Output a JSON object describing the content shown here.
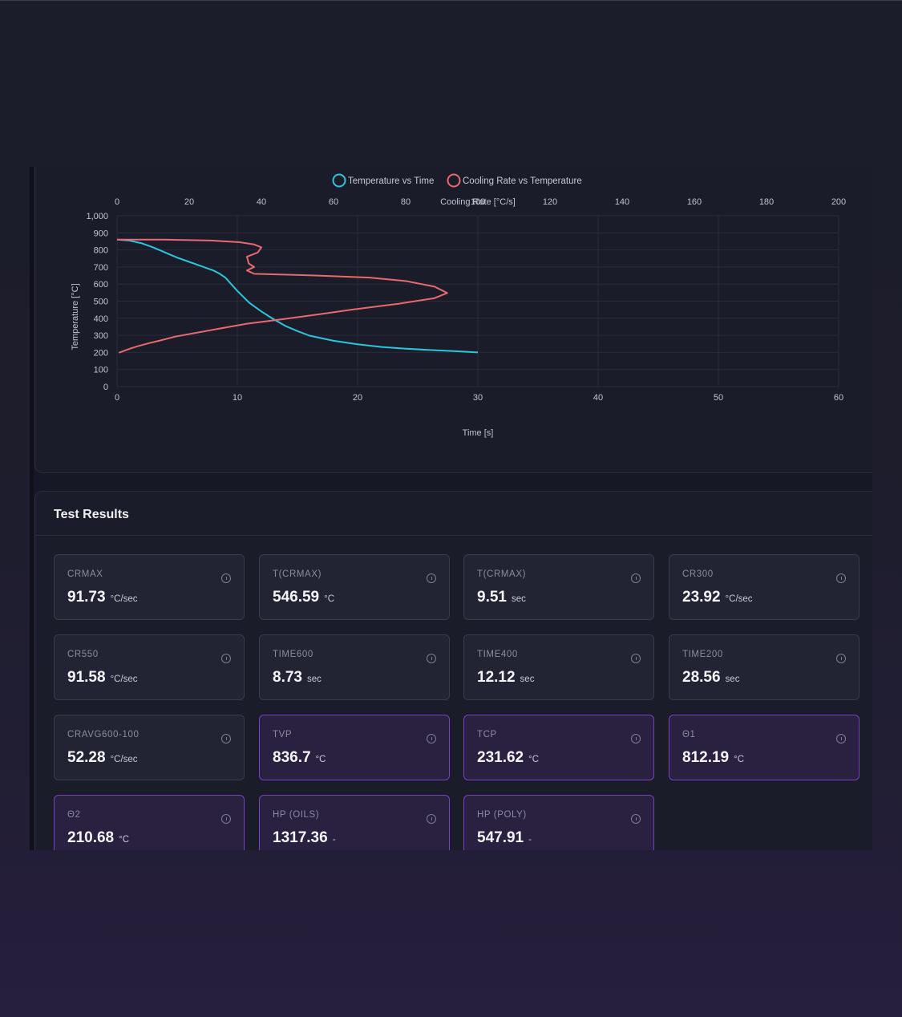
{
  "colors": {
    "temperature_series": "#2bc6dc",
    "cooling_series": "#e8696f",
    "highlight_border": "#7b3fc4",
    "background": "#1c1d2a"
  },
  "chart_data": {
    "type": "line",
    "legend_placement": "top-center",
    "grid": true,
    "legend": [
      "Temperature vs Time",
      "Cooling Rate vs Temperature"
    ],
    "x_label": "Time [s]",
    "x2_label": "Cooling Rate [°C/s]",
    "y_label": "Temperature [°C]",
    "xlim": [
      0,
      60
    ],
    "x2lim": [
      0,
      200
    ],
    "ylim": [
      0,
      1000
    ],
    "x_ticks": [
      "0",
      "10",
      "20",
      "30",
      "40",
      "50",
      "60"
    ],
    "x2_ticks": [
      "0",
      "20",
      "40",
      "60",
      "80",
      "100",
      "120",
      "140",
      "160",
      "180",
      "200"
    ],
    "y_ticks": [
      "0",
      "100",
      "200",
      "300",
      "400",
      "500",
      "600",
      "700",
      "800",
      "900",
      "1,000"
    ],
    "series": [
      {
        "name": "Temperature vs Time",
        "axis": "x",
        "points": [
          [
            0,
            860
          ],
          [
            1,
            855
          ],
          [
            2,
            840
          ],
          [
            3,
            815
          ],
          [
            4,
            785
          ],
          [
            5,
            755
          ],
          [
            6,
            730
          ],
          [
            7,
            705
          ],
          [
            8,
            680
          ],
          [
            8.5,
            662
          ],
          [
            9,
            638
          ],
          [
            10,
            560
          ],
          [
            11,
            490
          ],
          [
            12,
            440
          ],
          [
            13,
            395
          ],
          [
            14,
            355
          ],
          [
            15,
            325
          ],
          [
            16,
            298
          ],
          [
            18,
            268
          ],
          [
            20,
            248
          ],
          [
            22,
            232
          ],
          [
            24,
            222
          ],
          [
            26,
            214
          ],
          [
            28,
            208
          ],
          [
            30,
            200
          ]
        ]
      },
      {
        "name": "Cooling Rate vs Temperature",
        "axis": "x2",
        "points": [
          [
            0,
            860
          ],
          [
            13,
            860
          ],
          [
            26,
            855
          ],
          [
            34,
            845
          ],
          [
            38,
            832
          ],
          [
            40,
            815
          ],
          [
            39,
            785
          ],
          [
            36,
            760
          ],
          [
            36.5,
            720
          ],
          [
            38,
            700
          ],
          [
            36,
            680
          ],
          [
            38,
            660
          ],
          [
            55,
            650
          ],
          [
            70,
            638
          ],
          [
            80,
            618
          ],
          [
            88,
            585
          ],
          [
            91.5,
            548
          ],
          [
            88,
            518
          ],
          [
            78,
            485
          ],
          [
            65,
            450
          ],
          [
            55,
            420
          ],
          [
            45,
            392
          ],
          [
            36,
            368
          ],
          [
            28,
            338
          ],
          [
            22,
            315
          ],
          [
            16,
            292
          ],
          [
            12,
            270
          ],
          [
            9,
            255
          ],
          [
            6,
            238
          ],
          [
            4,
            225
          ],
          [
            2,
            210
          ],
          [
            0.5,
            198
          ]
        ]
      }
    ]
  },
  "results": {
    "title": "Test Results",
    "tiles": [
      {
        "label": "CRMAX",
        "value": "91.73",
        "unit": "°C/sec",
        "highlight": false
      },
      {
        "label": "T(CRMAX)",
        "value": "546.59",
        "unit": "°C",
        "highlight": false
      },
      {
        "label": "T(CRMAX)",
        "value": "9.51",
        "unit": "sec",
        "highlight": false
      },
      {
        "label": "CR300",
        "value": "23.92",
        "unit": "°C/sec",
        "highlight": false
      },
      {
        "label": "CR550",
        "value": "91.58",
        "unit": "°C/sec",
        "highlight": false
      },
      {
        "label": "TIME600",
        "value": "8.73",
        "unit": "sec",
        "highlight": false
      },
      {
        "label": "TIME400",
        "value": "12.12",
        "unit": "sec",
        "highlight": false
      },
      {
        "label": "TIME200",
        "value": "28.56",
        "unit": "sec",
        "highlight": false
      },
      {
        "label": "CRAVG600-100",
        "value": "52.28",
        "unit": "°C/sec",
        "highlight": false
      },
      {
        "label": "TVP",
        "value": "836.7",
        "unit": "°C",
        "highlight": true
      },
      {
        "label": "TCP",
        "value": "231.62",
        "unit": "°C",
        "highlight": true
      },
      {
        "label": "Θ1",
        "value": "812.19",
        "unit": "°C",
        "highlight": true
      },
      {
        "label": "Θ2",
        "value": "210.68",
        "unit": "°C",
        "highlight": true
      },
      {
        "label": "HP (OILS)",
        "value": "1317.36",
        "unit": "-",
        "highlight": true
      },
      {
        "label": "HP (POLY)",
        "value": "547.91",
        "unit": "-",
        "highlight": true
      }
    ]
  }
}
